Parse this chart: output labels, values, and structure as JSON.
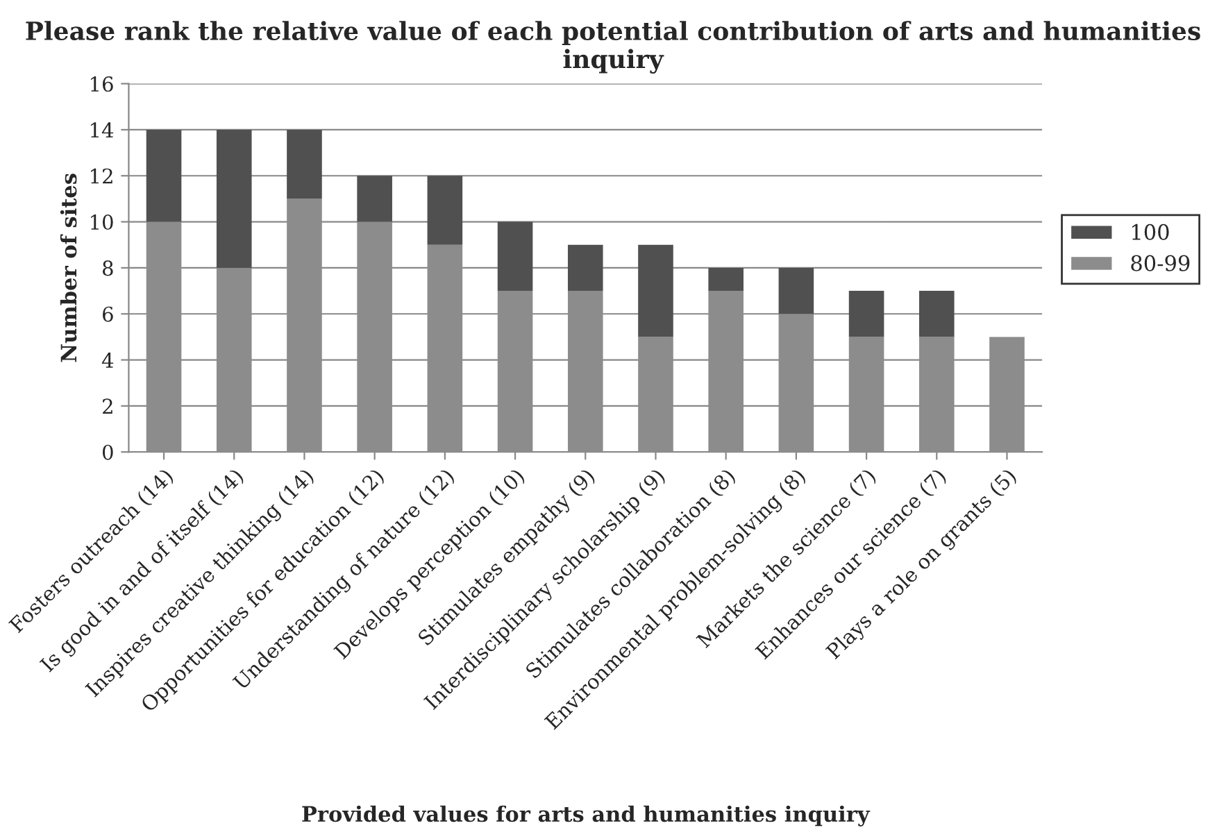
{
  "chart_data": {
    "type": "bar",
    "title": "Please rank the relative value of each potential contribution of arts and humanities inquiry",
    "xlabel": "Provided values for arts and humanities inquiry",
    "ylabel": "Number of sites",
    "categories": [
      "Fosters outreach (14)",
      "Is good in and of itself (14)",
      "Inspires creative thinking (14)",
      "Opportunities for education (12)",
      "Understanding of nature (12)",
      "Develops perception (10)",
      "Stimulates empathy (9)",
      "Interdisciplinary scholarship (9)",
      "Stimulates collaboration (8)",
      "Environmental problem-solving (8)",
      "Markets the science (7)",
      "Enhances our science (7)",
      "Plays a role on grants (5)"
    ],
    "series": [
      {
        "name": "80-99",
        "color": "#8c8c8c",
        "values": [
          10,
          8,
          11,
          10,
          9,
          7,
          7,
          5,
          7,
          6,
          5,
          5,
          5
        ]
      },
      {
        "name": "100",
        "color": "#505050",
        "values": [
          4,
          6,
          3,
          2,
          3,
          3,
          2,
          4,
          1,
          2,
          2,
          2,
          0
        ]
      }
    ],
    "stacked": true,
    "ylim": [
      0,
      16
    ],
    "yticks": [
      0,
      2,
      4,
      6,
      8,
      10,
      12,
      14,
      16
    ],
    "grid": "y",
    "legend": "right"
  }
}
